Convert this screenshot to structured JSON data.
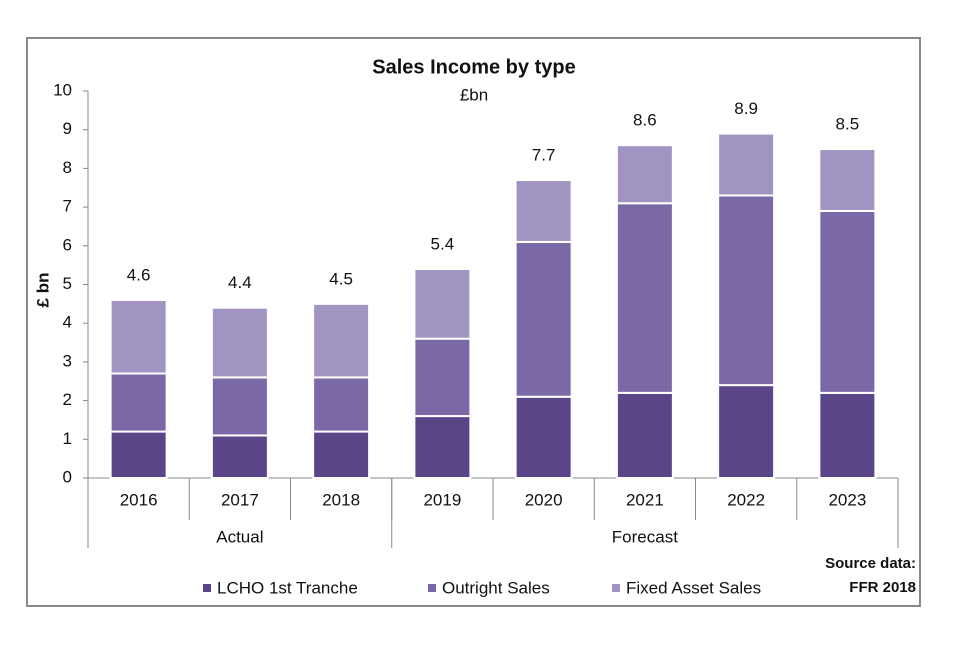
{
  "chart_data": {
    "type": "stacked_bar",
    "title": "Sales Income by type",
    "subtitle": "£bn",
    "y_label": "£ bn",
    "categories": [
      "2016",
      "2017",
      "2018",
      "2019",
      "2020",
      "2021",
      "2022",
      "2023"
    ],
    "series": [
      {
        "name": "LCHO 1st Tranche",
        "color": "#5b4589",
        "values": [
          1.2,
          1.1,
          1.2,
          1.6,
          2.1,
          2.2,
          2.4,
          2.2
        ]
      },
      {
        "name": "Outright Sales",
        "color": "#7b68a6",
        "values": [
          1.5,
          1.5,
          1.4,
          2.0,
          4.0,
          4.9,
          4.9,
          4.7
        ]
      },
      {
        "name": "Fixed Asset Sales",
        "color": "#a294c2",
        "values": [
          1.9,
          1.8,
          1.9,
          1.8,
          1.6,
          1.5,
          1.6,
          1.6
        ]
      }
    ],
    "totals": [
      4.6,
      4.4,
      4.5,
      5.4,
      7.7,
      8.6,
      8.9,
      8.5
    ],
    "groups": [
      {
        "label": "Actual",
        "count": 3
      },
      {
        "label": "Forecast",
        "count": 5
      }
    ],
    "ylim": [
      0,
      10
    ],
    "yticks": [
      0,
      1,
      2,
      3,
      4,
      5,
      6,
      7,
      8,
      9,
      10
    ],
    "grid": false,
    "source": [
      "Source data:",
      "FFR 2018"
    ]
  }
}
